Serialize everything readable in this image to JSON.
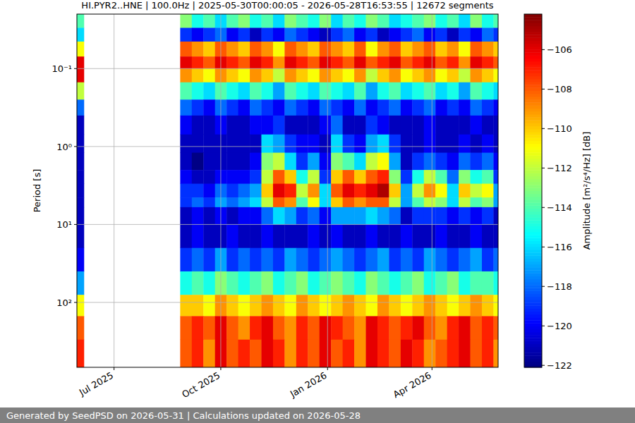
{
  "chart_data": {
    "type": "heatmap",
    "title": "HI.PYR2..HNE | 100.0Hz | 2025-05-30T00:00:05 - 2026-05-28T16:53:55 | 12672 segments",
    "y_label": "Period [s]",
    "colorbar_label": "Amplitude [m²/s⁴/Hz] [dB]",
    "footer": "Generated by SeedPSD on 2026-05-31 | Calculations updated on 2026-05-28",
    "log": "y",
    "grid": true,
    "xlim": [
      "2025-05-30",
      "2026-05-28"
    ],
    "ylim": [
      0.02,
      680
    ],
    "xticks": [
      {
        "value": "2025-07-01",
        "label": "Jul 2025"
      },
      {
        "value": "2025-10-01",
        "label": "Oct 2025"
      },
      {
        "value": "2026-01-01",
        "label": "Jan 2026"
      },
      {
        "value": "2026-04-01",
        "label": "Apr 2026"
      }
    ],
    "yticks": [
      {
        "value": 0.1,
        "label": "10⁻¹"
      },
      {
        "value": 1,
        "label": "10⁰"
      },
      {
        "value": 10,
        "label": "10¹"
      },
      {
        "value": 100,
        "label": "10²"
      }
    ],
    "x_bins": [
      "2025-05-30",
      "2025-06-05",
      "2025-08-27",
      "2025-09-06",
      "2025-09-16",
      "2025-09-26",
      "2025-10-06",
      "2025-10-16",
      "2025-10-26",
      "2025-11-05",
      "2025-11-15",
      "2025-11-25",
      "2025-12-05",
      "2025-12-15",
      "2025-12-25",
      "2026-01-04",
      "2026-01-14",
      "2026-01-24",
      "2026-02-03",
      "2026-02-13",
      "2026-02-23",
      "2026-03-05",
      "2026-03-15",
      "2026-03-25",
      "2026-04-04",
      "2026-04-14",
      "2026-04-24",
      "2026-05-04",
      "2026-05-14",
      "2026-05-24",
      "2026-05-28"
    ],
    "y_bins": [
      0.02,
      0.03,
      0.045,
      0.07,
      0.1,
      0.15,
      0.25,
      0.4,
      0.7,
      1.2,
      2,
      3,
      4.5,
      6,
      10,
      20,
      40,
      80,
      150,
      300,
      680
    ],
    "cells": [
      [
        -114,
        null,
        -113,
        -115,
        -114,
        -116,
        -114,
        -113,
        -115,
        -114,
        -116,
        -113,
        -114,
        -115,
        -113,
        -116,
        -114,
        -115,
        -113,
        -114,
        -116,
        -115,
        -114,
        -113,
        -115,
        -114,
        -116,
        -113,
        -115,
        -114
      ],
      [
        -116,
        null,
        -119,
        -120,
        -119,
        -118,
        -120,
        -119,
        -121,
        -119,
        -120,
        -118,
        -119,
        -120,
        -121,
        -119,
        -118,
        -120,
        -119,
        -121,
        -120,
        -119,
        -118,
        -120,
        -119,
        -121,
        -119,
        -120,
        -118,
        -119
      ],
      [
        -111,
        null,
        -108,
        -109,
        -110,
        -108,
        -109,
        -110,
        -108,
        -109,
        -111,
        -108,
        -109,
        -110,
        -108,
        -109,
        -110,
        -108,
        -111,
        -109,
        -108,
        -110,
        -109,
        -108,
        -110,
        -109,
        -111,
        -108,
        -109,
        -110
      ],
      [
        -106,
        null,
        -106,
        -107,
        -108,
        -106,
        -107,
        -108,
        -106,
        -107,
        -109,
        -106,
        -107,
        -108,
        -106,
        -107,
        -108,
        -106,
        -108,
        -107,
        -106,
        -108,
        -107,
        -106,
        -108,
        -107,
        -109,
        -106,
        -107,
        -108
      ],
      [
        -106,
        null,
        -109,
        -110,
        -111,
        -109,
        -110,
        -111,
        -109,
        -110,
        -112,
        -109,
        -110,
        -111,
        -109,
        -110,
        -111,
        -109,
        -112,
        -110,
        -109,
        -111,
        -110,
        -109,
        -111,
        -110,
        -112,
        -109,
        -110,
        -111
      ],
      [
        -112,
        null,
        -114,
        -115,
        -116,
        -114,
        -115,
        -116,
        -114,
        -115,
        -117,
        -114,
        -115,
        -116,
        -114,
        -115,
        -116,
        -114,
        -117,
        -115,
        -114,
        -116,
        -115,
        -114,
        -116,
        -115,
        -117,
        -114,
        -115,
        -116
      ],
      [
        -118,
        null,
        -118,
        -119,
        -120,
        -118,
        -119,
        -120,
        -118,
        -119,
        -120,
        -118,
        -119,
        -120,
        -118,
        -119,
        -120,
        -118,
        -120,
        -119,
        -118,
        -120,
        -119,
        -118,
        -120,
        -119,
        -120,
        -118,
        -119,
        -120
      ],
      [
        -121,
        null,
        -120,
        -121,
        -121,
        -120,
        -121,
        -121,
        -120,
        -120,
        -119,
        -121,
        -121,
        -121,
        -120,
        -118,
        -121,
        -121,
        -119,
        -120,
        -121,
        -121,
        -121,
        -120,
        -121,
        -121,
        -121,
        -120,
        -121,
        -121
      ],
      [
        -121,
        null,
        -121,
        -121,
        -121,
        -121,
        -121,
        -121,
        -121,
        -116,
        -117,
        -119,
        -120,
        -120,
        -121,
        -116,
        -119,
        -120,
        -117,
        -116,
        -119,
        -121,
        -121,
        -120,
        -121,
        -121,
        -120,
        -121,
        -120,
        -121
      ],
      [
        -121,
        null,
        -121,
        -122,
        -121,
        -121,
        -121,
        -121,
        -120,
        -113,
        -112,
        -116,
        -119,
        -117,
        -120,
        -113,
        -114,
        -116,
        -112,
        -111,
        -117,
        -121,
        -119,
        -118,
        -119,
        -120,
        -118,
        -119,
        -118,
        -120
      ],
      [
        -121,
        null,
        -120,
        -121,
        -121,
        -120,
        -120,
        -120,
        -119,
        -112,
        -108,
        -110,
        -115,
        -112,
        -119,
        -110,
        -108,
        -110,
        -108,
        -107,
        -113,
        -119,
        -115,
        -112,
        -114,
        -118,
        -113,
        -115,
        -114,
        -119
      ],
      [
        -121,
        null,
        -119,
        -119,
        -120,
        -118,
        -119,
        -118,
        -117,
        -110,
        -106,
        -107,
        -112,
        -109,
        -116,
        -108,
        -106,
        -107,
        -106,
        -105,
        -110,
        -117,
        -112,
        -109,
        -111,
        -116,
        -110,
        -112,
        -111,
        -117
      ],
      [
        -121,
        null,
        -119,
        -118,
        -119,
        -117,
        -118,
        -117,
        -116,
        -112,
        -108,
        -109,
        -114,
        -111,
        -116,
        -110,
        -108,
        -109,
        -108,
        -108,
        -112,
        -117,
        -114,
        -112,
        -113,
        -116,
        -112,
        -114,
        -113,
        -117
      ],
      [
        -121,
        null,
        -121,
        -120,
        -121,
        -120,
        -121,
        -120,
        -120,
        -118,
        -116,
        -117,
        -119,
        -118,
        -120,
        -117,
        -117,
        -117,
        -116,
        -117,
        -118,
        -121,
        -119,
        -119,
        -119,
        -120,
        -119,
        -120,
        -119,
        -121
      ],
      [
        -121,
        null,
        -121,
        -120,
        -121,
        -121,
        -120,
        -121,
        -121,
        -120,
        -121,
        -121,
        -121,
        -120,
        -121,
        -120,
        -121,
        -121,
        -120,
        -121,
        -121,
        -120,
        -121,
        -121,
        -120,
        -121,
        -121,
        -120,
        -121,
        -121
      ],
      [
        -120,
        null,
        -119,
        -118,
        -119,
        -117,
        -119,
        -118,
        -119,
        -118,
        -119,
        -117,
        -118,
        -119,
        -118,
        -117,
        -118,
        -119,
        -118,
        -117,
        -119,
        -118,
        -119,
        -117,
        -118,
        -119,
        -118,
        -117,
        -119,
        -118
      ],
      [
        -117,
        null,
        -115,
        -114,
        -115,
        -113,
        -114,
        -115,
        -114,
        -113,
        -115,
        -114,
        -113,
        -115,
        -114,
        -113,
        -114,
        -115,
        -113,
        -114,
        -115,
        -114,
        -113,
        -115,
        -114,
        -113,
        -115,
        -114,
        -114,
        -115
      ],
      [
        -111,
        null,
        -110,
        -110,
        -111,
        -109,
        -110,
        -111,
        -110,
        -109,
        -110,
        -111,
        -109,
        -110,
        -111,
        -110,
        -109,
        -110,
        -111,
        -109,
        -110,
        -111,
        -110,
        -109,
        -110,
        -111,
        -110,
        -109,
        -110,
        -111
      ],
      [
        -108,
        null,
        -108,
        -107,
        -108,
        -106,
        -108,
        -109,
        -107,
        -106,
        -108,
        -109,
        -107,
        -108,
        -106,
        -107,
        -108,
        -109,
        -106,
        -107,
        -108,
        -107,
        -106,
        -108,
        -109,
        -107,
        -106,
        -108,
        -107,
        -108
      ],
      [
        -107,
        null,
        -108,
        -107,
        -109,
        -106,
        -108,
        -107,
        -108,
        -106,
        -107,
        -109,
        -107,
        -108,
        -106,
        -108,
        -107,
        -109,
        -106,
        -107,
        -108,
        -106,
        -107,
        -109,
        -108,
        -107,
        -106,
        -108,
        -107,
        -109
      ]
    ],
    "colorbar_range": [
      -122.1,
      -104.2
    ],
    "colorbar_ticks": [
      {
        "value": -122,
        "label": "−122"
      },
      {
        "value": -120,
        "label": "−120"
      },
      {
        "value": -118,
        "label": "−118"
      },
      {
        "value": -116,
        "label": "−116"
      },
      {
        "value": -114,
        "label": "−114"
      },
      {
        "value": -112,
        "label": "−112"
      },
      {
        "value": -110,
        "label": "−110"
      },
      {
        "value": -108,
        "label": "−108"
      },
      {
        "value": -106,
        "label": "−106"
      }
    ]
  }
}
